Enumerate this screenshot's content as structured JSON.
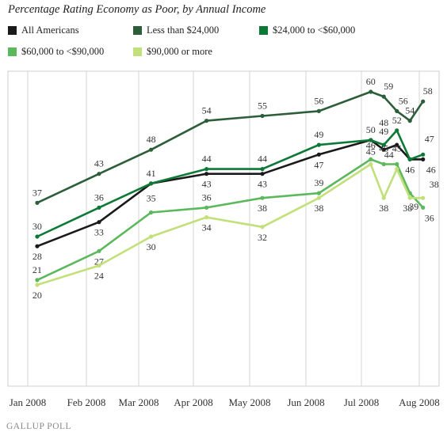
{
  "chart_data": {
    "type": "line",
    "title": "Percentage Rating Economy as Poor, by Annual Income",
    "xlabel": "",
    "ylabel": "",
    "ylim": [
      15,
      65
    ],
    "grid": "vertical",
    "legend_position": "top",
    "x_tick_labels": [
      "Jan 2008",
      "Feb 2008",
      "Mar 2008",
      "Apr 2008",
      "May 2008",
      "Jun 2008",
      "Jul 2008",
      "Aug 2008"
    ],
    "x_tick_dates": [
      "2008-01-01",
      "2008-02-01",
      "2008-03-01",
      "2008-04-01",
      "2008-05-01",
      "2008-06-01",
      "2008-07-01",
      "2008-08-01"
    ],
    "series": [
      {
        "name": "All Americans",
        "color": "#1a1a1a",
        "points": [
          {
            "x": "2008-01-06",
            "y": 28,
            "label": "28"
          },
          {
            "x": "2008-02-08",
            "y": 33,
            "label": "33"
          },
          {
            "x": "2008-03-08",
            "y": 41,
            "label": ""
          },
          {
            "x": "2008-04-08",
            "y": 43,
            "label": "43"
          },
          {
            "x": "2008-05-08",
            "y": 43,
            "label": "43"
          },
          {
            "x": "2008-06-08",
            "y": 47,
            "label": "47"
          },
          {
            "x": "2008-07-06",
            "y": 50,
            "label": ""
          },
          {
            "x": "2008-07-13",
            "y": 48,
            "label": "48"
          },
          {
            "x": "2008-07-20",
            "y": 49,
            "label": ""
          },
          {
            "x": "2008-07-27",
            "y": 46,
            "label": ""
          },
          {
            "x": "2008-08-03",
            "y": 46,
            "label": "46"
          }
        ]
      },
      {
        "name": "Less than $24,000",
        "color": "#2d5e3a",
        "points": [
          {
            "x": "2008-01-06",
            "y": 37,
            "label": "37"
          },
          {
            "x": "2008-02-08",
            "y": 43,
            "label": "43"
          },
          {
            "x": "2008-03-08",
            "y": 48,
            "label": "48"
          },
          {
            "x": "2008-04-08",
            "y": 54,
            "label": "54"
          },
          {
            "x": "2008-05-08",
            "y": 55,
            "label": "55"
          },
          {
            "x": "2008-06-08",
            "y": 56,
            "label": "56"
          },
          {
            "x": "2008-07-06",
            "y": 60,
            "label": "60"
          },
          {
            "x": "2008-07-13",
            "y": 59,
            "label": "59"
          },
          {
            "x": "2008-07-20",
            "y": 56,
            "label": "56"
          },
          {
            "x": "2008-07-27",
            "y": 54,
            "label": "54"
          },
          {
            "x": "2008-08-03",
            "y": 58,
            "label": "58"
          }
        ]
      },
      {
        "name": "$24,000 to <$60,000",
        "color": "#0c7a36",
        "points": [
          {
            "x": "2008-01-06",
            "y": 30,
            "label": "30"
          },
          {
            "x": "2008-02-08",
            "y": 36,
            "label": "36"
          },
          {
            "x": "2008-03-08",
            "y": 41,
            "label": "41"
          },
          {
            "x": "2008-04-08",
            "y": 44,
            "label": "44"
          },
          {
            "x": "2008-05-08",
            "y": 44,
            "label": "44"
          },
          {
            "x": "2008-06-08",
            "y": 49,
            "label": "49"
          },
          {
            "x": "2008-07-06",
            "y": 50,
            "label": "50"
          },
          {
            "x": "2008-07-13",
            "y": 49,
            "label": "49"
          },
          {
            "x": "2008-07-20",
            "y": 52,
            "label": "52"
          },
          {
            "x": "2008-07-27",
            "y": 46,
            "label": "46"
          },
          {
            "x": "2008-08-03",
            "y": 47,
            "label": "47"
          }
        ]
      },
      {
        "name": "$60,000 to <$90,000",
        "color": "#5cb85c",
        "points": [
          {
            "x": "2008-01-06",
            "y": 21,
            "label": "21"
          },
          {
            "x": "2008-02-08",
            "y": 27,
            "label": "27"
          },
          {
            "x": "2008-03-08",
            "y": 35,
            "label": "35"
          },
          {
            "x": "2008-04-08",
            "y": 36,
            "label": "36"
          },
          {
            "x": "2008-05-08",
            "y": 38,
            "label": "38"
          },
          {
            "x": "2008-06-08",
            "y": 39,
            "label": "39"
          },
          {
            "x": "2008-07-06",
            "y": 46,
            "label": "46"
          },
          {
            "x": "2008-07-13",
            "y": 45,
            "label": "45"
          },
          {
            "x": "2008-07-20",
            "y": 45,
            "label": "45"
          },
          {
            "x": "2008-07-27",
            "y": 39,
            "label": "39"
          },
          {
            "x": "2008-08-03",
            "y": 36,
            "label": "36"
          }
        ]
      },
      {
        "name": "$90,000 or more",
        "color": "#c2e07a",
        "points": [
          {
            "x": "2008-01-06",
            "y": 20,
            "label": "20"
          },
          {
            "x": "2008-02-08",
            "y": 24,
            "label": "24"
          },
          {
            "x": "2008-03-08",
            "y": 30,
            "label": "30"
          },
          {
            "x": "2008-04-08",
            "y": 34,
            "label": "34"
          },
          {
            "x": "2008-05-08",
            "y": 32,
            "label": "32"
          },
          {
            "x": "2008-06-08",
            "y": 38,
            "label": "38"
          },
          {
            "x": "2008-07-06",
            "y": 45,
            "label": "45"
          },
          {
            "x": "2008-07-13",
            "y": 38,
            "label": "38"
          },
          {
            "x": "2008-07-20",
            "y": 44,
            "label": "44"
          },
          {
            "x": "2008-07-27",
            "y": 38,
            "label": "38"
          },
          {
            "x": "2008-08-03",
            "y": 38,
            "label": "38"
          }
        ]
      }
    ]
  },
  "logo": {
    "text": "GALLUP POLL"
  }
}
